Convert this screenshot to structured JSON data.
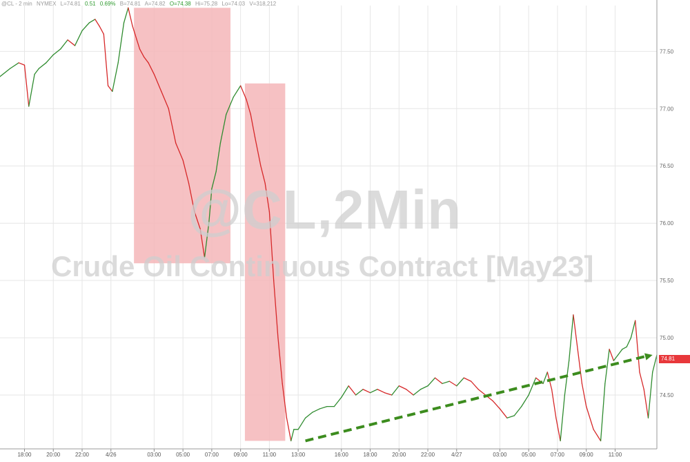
{
  "header": {
    "symbol": "@CL - 2 min",
    "exchange": "NYMEX",
    "last": "L=74.81",
    "change": "0.51",
    "change_pct": "0.69%",
    "bid": "B=74.81",
    "ask": "A=74.82",
    "open": "O=74.38",
    "high": "Hi=75.28",
    "low": "Lo=74.03",
    "volume": "V=318,212"
  },
  "watermark": {
    "line1": "@CL,2Min",
    "line2": "Crude Oil Continuous Contract [May23]"
  },
  "last_price_label": "74.81",
  "colors": {
    "up": "#2e8b2e",
    "down": "#d62728",
    "highlight": "#f4b6b8",
    "trend": "#3c8c1e",
    "price_tag": "#e8383b",
    "grid": "#e6e6e6"
  },
  "chart_data": {
    "type": "line",
    "title": "",
    "xlabel": "",
    "ylabel": "",
    "ylim": [
      74.03,
      77.9
    ],
    "y_ticks": [
      "77.50",
      "77.00",
      "76.50",
      "76.00",
      "75.50",
      "75.00",
      "74.50"
    ],
    "y_tick_values": [
      77.5,
      77.0,
      76.5,
      76.0,
      75.5,
      75.0,
      74.5
    ],
    "x_tick_labels": [
      "18:00",
      "20:00",
      "22:00",
      "4/26",
      "03:00",
      "05:00",
      "07:00",
      "09:00",
      "11:00",
      "13:00",
      "16:00",
      "18:00",
      "20:00",
      "22:00",
      "4/27",
      "03:00",
      "05:00",
      "07:00",
      "09:00",
      "11:00"
    ],
    "x_tick_hours": [
      0,
      2,
      4,
      6,
      9,
      11,
      13,
      15,
      17,
      19,
      22,
      24,
      26,
      28,
      30,
      33,
      35,
      37,
      39,
      41
    ],
    "x_range": [
      -1.7,
      43.9
    ],
    "series": [
      {
        "x": [
          -1.7,
          -1.0,
          -0.4,
          0.0,
          0.3,
          0.7,
          1.0,
          1.5,
          2.0,
          2.5,
          3.0,
          3.5,
          4.0,
          4.5,
          4.9,
          5.2,
          5.5,
          5.8,
          6.1,
          6.5,
          6.9,
          7.2,
          7.5,
          7.8,
          8.0,
          8.3,
          8.6,
          9.0,
          9.5,
          10.0,
          10.5,
          11.0,
          11.4,
          11.8,
          12.2,
          12.5,
          12.8,
          13.0,
          13.3,
          13.6,
          14.0,
          14.5,
          15.0,
          15.4,
          15.7,
          16.0,
          16.4,
          16.7,
          17.0,
          17.3,
          17.6,
          17.9,
          18.2,
          18.5,
          18.7,
          19.0,
          19.5,
          20.0,
          20.5,
          21.0,
          21.5,
          22.0,
          22.5,
          23.0,
          23.5,
          24.0,
          24.5,
          25.0,
          25.5,
          26.0,
          26.5,
          27.0,
          27.5,
          28.0,
          28.5,
          29.0,
          29.5,
          30.0,
          30.5,
          31.0,
          31.5,
          32.0,
          32.5,
          33.0,
          33.5,
          34.0,
          34.5,
          35.0,
          35.5,
          36.0,
          36.3,
          36.6,
          36.9,
          37.2,
          37.5,
          37.8,
          38.1,
          38.4,
          38.7,
          39.0,
          39.5,
          40.0,
          40.3,
          40.6,
          40.9,
          41.2,
          41.5,
          41.8,
          42.1,
          42.4,
          42.7,
          43.0,
          43.3,
          43.6,
          43.9
        ],
        "y": [
          77.28,
          77.35,
          77.4,
          77.38,
          77.02,
          77.3,
          77.35,
          77.4,
          77.47,
          77.52,
          77.6,
          77.55,
          77.68,
          77.75,
          77.78,
          77.72,
          77.65,
          77.2,
          77.15,
          77.4,
          77.75,
          77.88,
          77.72,
          77.6,
          77.52,
          77.45,
          77.4,
          77.3,
          77.15,
          77.0,
          76.7,
          76.55,
          76.35,
          76.1,
          75.95,
          75.7,
          76.0,
          76.3,
          76.45,
          76.7,
          76.95,
          77.1,
          77.2,
          77.08,
          76.95,
          76.75,
          76.5,
          76.35,
          76.1,
          75.5,
          75.0,
          74.6,
          74.3,
          74.1,
          74.2,
          74.2,
          74.3,
          74.35,
          74.38,
          74.4,
          74.4,
          74.48,
          74.58,
          74.5,
          74.55,
          74.52,
          74.55,
          74.52,
          74.5,
          74.58,
          74.55,
          74.5,
          74.55,
          74.58,
          74.65,
          74.6,
          74.62,
          74.58,
          74.65,
          74.62,
          74.55,
          74.5,
          74.45,
          74.38,
          74.3,
          74.32,
          74.4,
          74.5,
          74.65,
          74.6,
          74.7,
          74.55,
          74.3,
          74.1,
          74.5,
          74.8,
          75.2,
          74.9,
          74.6,
          74.4,
          74.2,
          74.1,
          74.6,
          74.9,
          74.8,
          74.85,
          74.9,
          74.92,
          75.0,
          75.15,
          74.7,
          74.55,
          74.3,
          74.7,
          74.85
        ]
      }
    ],
    "highlights": [
      {
        "x0": 7.6,
        "x1": 14.3,
        "y0": 75.65,
        "y1": 77.88
      },
      {
        "x0": 15.3,
        "x1": 18.1,
        "y0": 74.1,
        "y1": 77.22
      }
    ],
    "trendline": {
      "x0": 19.5,
      "x1": 43.6,
      "y0": 74.1,
      "y1": 74.85
    },
    "last_value": 74.81,
    "grid": true,
    "legend": "none"
  }
}
